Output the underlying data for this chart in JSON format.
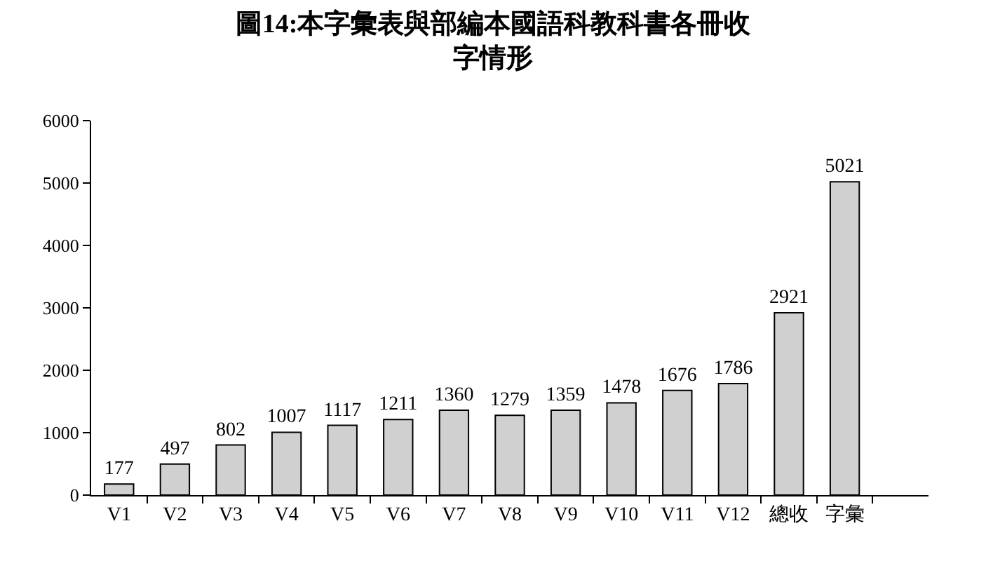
{
  "chart_data": {
    "type": "bar",
    "title": "圖14:本字彙表與部編本國語科教科書各冊收字情形",
    "categories": [
      "V1",
      "V2",
      "V3",
      "V4",
      "V5",
      "V6",
      "V7",
      "V8",
      "V9",
      "V10",
      "V11",
      "V12",
      "總收",
      "字彙",
      null
    ],
    "values": [
      177,
      497,
      802,
      1007,
      1117,
      1211,
      1360,
      1279,
      1359,
      1478,
      1676,
      1786,
      2921,
      5021,
      null
    ],
    "color": "#d0d0d0",
    "ylim": [
      0,
      6000
    ],
    "yticks": [
      0,
      1000,
      2000,
      3000,
      4000,
      5000,
      6000
    ],
    "data_labels": true
  }
}
